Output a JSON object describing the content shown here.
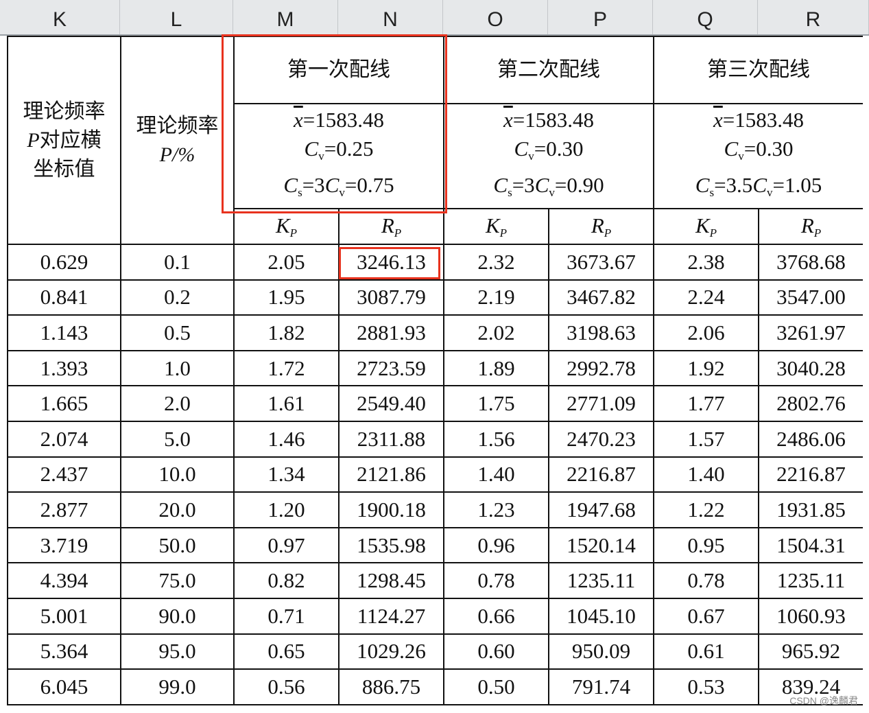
{
  "column_headers": [
    "K",
    "L",
    "M",
    "N",
    "O",
    "P",
    "Q",
    "R"
  ],
  "header": {
    "k_label": [
      "理论频率",
      "P对应横",
      "坐标值"
    ],
    "l_label": [
      "理论频率",
      "P/%"
    ],
    "groups": [
      {
        "title": "第一次配线",
        "xbar": "=1583.48",
        "cv": "=0.25",
        "cs": "=3",
        "cs_tail": "=0.75",
        "cs_mult": "3"
      },
      {
        "title": "第二次配线",
        "xbar": "=1583.48",
        "cv": "=0.30",
        "cs": "=3",
        "cs_tail": "=0.90",
        "cs_mult": "3"
      },
      {
        "title": "第三次配线",
        "xbar": "=1583.48",
        "cv": "=0.30",
        "cs": "=3.5",
        "cs_tail": "=1.05",
        "cs_mult": "3.5"
      }
    ],
    "kp": "K",
    "rp": "R",
    "sub_p": "P"
  },
  "rows": [
    [
      "0.629",
      "0.1",
      "2.05",
      "3246.13",
      "2.32",
      "3673.67",
      "2.38",
      "3768.68"
    ],
    [
      "0.841",
      "0.2",
      "1.95",
      "3087.79",
      "2.19",
      "3467.82",
      "2.24",
      "3547.00"
    ],
    [
      "1.143",
      "0.5",
      "1.82",
      "2881.93",
      "2.02",
      "3198.63",
      "2.06",
      "3261.97"
    ],
    [
      "1.393",
      "1.0",
      "1.72",
      "2723.59",
      "1.89",
      "2992.78",
      "1.92",
      "3040.28"
    ],
    [
      "1.665",
      "2.0",
      "1.61",
      "2549.40",
      "1.75",
      "2771.09",
      "1.77",
      "2802.76"
    ],
    [
      "2.074",
      "5.0",
      "1.46",
      "2311.88",
      "1.56",
      "2470.23",
      "1.57",
      "2486.06"
    ],
    [
      "2.437",
      "10.0",
      "1.34",
      "2121.86",
      "1.40",
      "2216.87",
      "1.40",
      "2216.87"
    ],
    [
      "2.877",
      "20.0",
      "1.20",
      "1900.18",
      "1.23",
      "1947.68",
      "1.22",
      "1931.85"
    ],
    [
      "3.719",
      "50.0",
      "0.97",
      "1535.98",
      "0.96",
      "1520.14",
      "0.95",
      "1504.31"
    ],
    [
      "4.394",
      "75.0",
      "0.82",
      "1298.45",
      "0.78",
      "1235.11",
      "0.78",
      "1235.11"
    ],
    [
      "5.001",
      "90.0",
      "0.71",
      "1124.27",
      "0.66",
      "1045.10",
      "0.67",
      "1060.93"
    ],
    [
      "5.364",
      "95.0",
      "0.65",
      "1029.26",
      "0.60",
      "950.09",
      "0.61",
      "965.92"
    ],
    [
      "6.045",
      "99.0",
      "0.56",
      "886.75",
      "0.50",
      "791.74",
      "0.53",
      "839.24"
    ]
  ],
  "highlight_color": "#e8321e",
  "watermark": "CSDN @逸麟君"
}
